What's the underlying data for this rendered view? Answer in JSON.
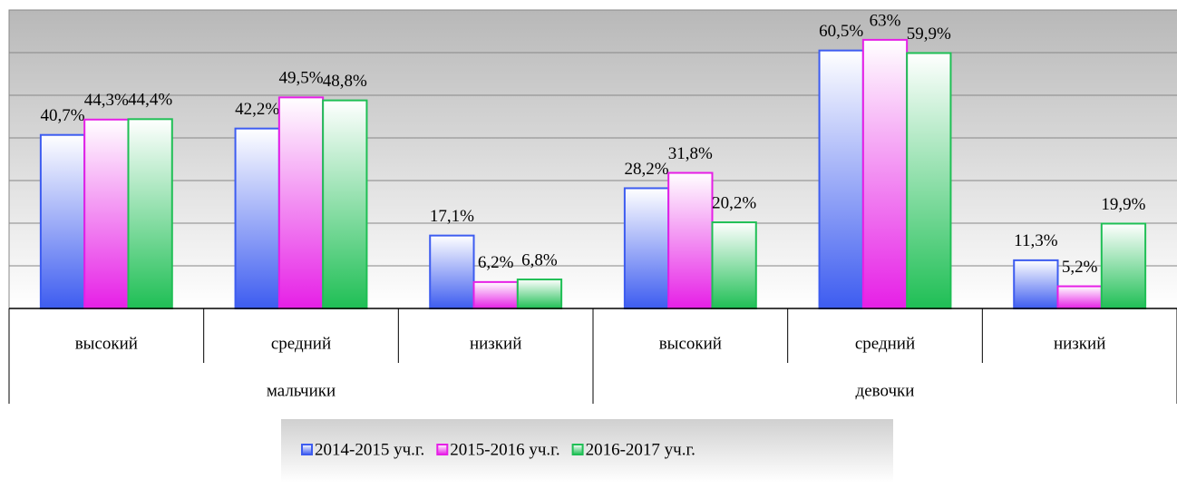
{
  "chart_data": {
    "type": "bar",
    "categories": [
      "высокий",
      "средний",
      "низкий",
      "высокий",
      "средний",
      "низкий"
    ],
    "groups": [
      "мальчики",
      "девочки"
    ],
    "series": [
      {
        "name": "2014-2015 уч.г.",
        "color": "#3d5cf0",
        "values": [
          40.7,
          42.2,
          17.1,
          28.2,
          60.5,
          11.3
        ],
        "value_labels": [
          "40,7%",
          "42,2%",
          "17,1%",
          "28,2%",
          "60,5%",
          "11,3%"
        ]
      },
      {
        "name": "2015-2016 уч.г.",
        "color": "#e61fe6",
        "values": [
          44.3,
          49.5,
          6.2,
          31.8,
          63,
          5.2
        ],
        "value_labels": [
          "44,3%",
          "49,5%",
          "6,2%",
          "31,8%",
          "63%",
          "5,2%"
        ]
      },
      {
        "name": "2016-2017 уч.г.",
        "color": "#1fbf55",
        "values": [
          44.4,
          48.8,
          6.8,
          20.2,
          59.9,
          19.9
        ],
        "value_labels": [
          "44,4%",
          "48,8%",
          "6,8%",
          "20,2%",
          "59,9%",
          "19,9%"
        ]
      }
    ],
    "ylim": [
      0,
      70
    ],
    "yticks": [
      0,
      10,
      20,
      30,
      40,
      50,
      60,
      70
    ],
    "grid": true
  }
}
